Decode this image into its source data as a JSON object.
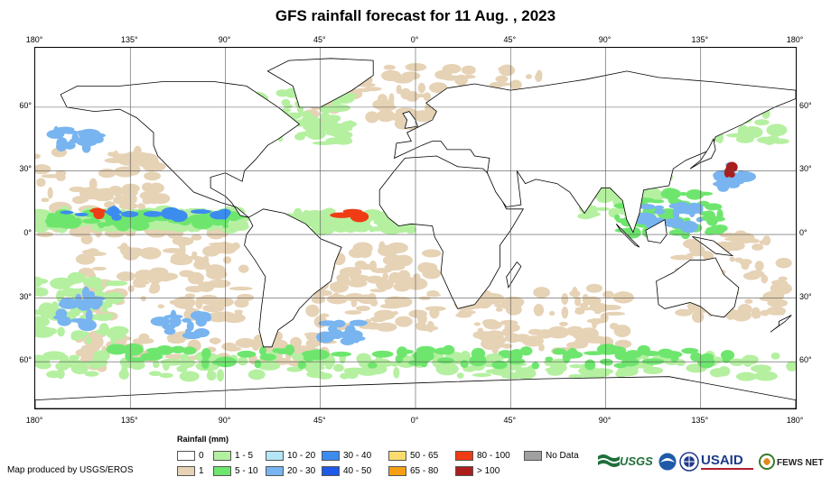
{
  "title": "GFS rainfall forecast for 11 Aug. , 2023",
  "map": {
    "lon_ticks": [
      "180°",
      "135°",
      "90°",
      "45°",
      "0°",
      "45°",
      "90°",
      "135°",
      "180°"
    ],
    "lat_ticks": [
      "60°",
      "30°",
      "0°",
      "30°",
      "60°"
    ],
    "lon_range": [
      -180,
      180
    ],
    "lat_range": [
      -82,
      88
    ],
    "graticule": true
  },
  "legend": {
    "title": "Rainfall (mm)",
    "items": [
      {
        "label": "0",
        "color": "#ffffff"
      },
      {
        "label": "1",
        "color": "#e6d2b5"
      },
      {
        "label": "1 - 5",
        "color": "#b4f0a0"
      },
      {
        "label": "5 - 10",
        "color": "#6ee66e"
      },
      {
        "label": "10 - 20",
        "color": "#b4e6f5"
      },
      {
        "label": "20 - 30",
        "color": "#78b4f0"
      },
      {
        "label": "30 - 40",
        "color": "#3c8cf0"
      },
      {
        "label": "40 - 50",
        "color": "#1e5ae6"
      },
      {
        "label": "50 - 65",
        "color": "#fadc6e"
      },
      {
        "label": "65 - 80",
        "color": "#f5a014"
      },
      {
        "label": "80 - 100",
        "color": "#f03c14"
      },
      {
        "label": "> 100",
        "color": "#aa1e1e"
      },
      {
        "label": "No Data",
        "color": "#a0a0a0"
      }
    ]
  },
  "credit": "Map produced by USGS/EROS",
  "logos": [
    {
      "name": "USGS",
      "label": "USGS",
      "icon": "usgs-logo"
    },
    {
      "name": "NOAA",
      "label": "",
      "icon": "noaa-logo"
    },
    {
      "name": "NASA",
      "label": "",
      "icon": "nasa-logo"
    },
    {
      "name": "USAID",
      "label": "USAID",
      "icon": "usaid-logo"
    },
    {
      "name": "FEWS NET",
      "label": "FEWS NET",
      "icon": "fewsnet-logo"
    }
  ]
}
